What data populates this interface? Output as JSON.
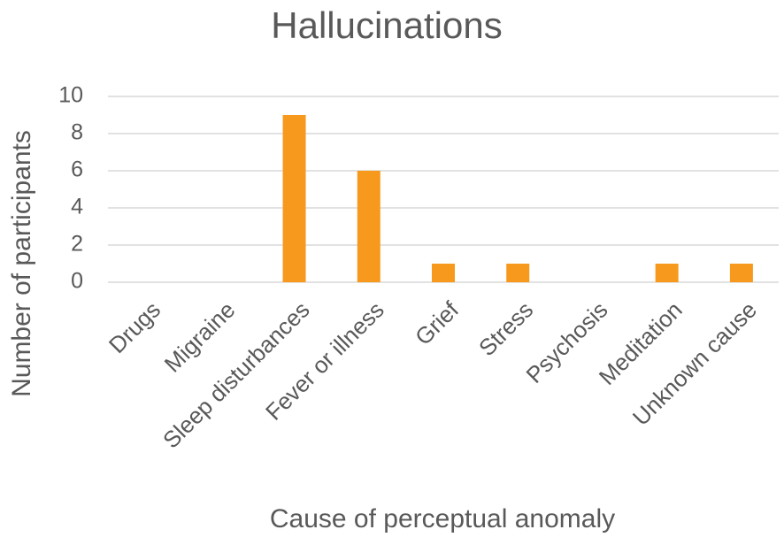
{
  "chart_data": {
    "type": "bar",
    "title": "Hallucinations",
    "x_label": "Cause of perceptual anomaly",
    "y_label": "Number of participants",
    "categories": [
      "Drugs",
      "Migraine",
      "Sleep disturbances",
      "Fever or illness",
      "Grief",
      "Stress",
      "Psychosis",
      "Meditation",
      "Unknown cause"
    ],
    "values": [
      0,
      0,
      9,
      6,
      1,
      1,
      0,
      1,
      1
    ],
    "color": "#f7991c",
    "ylim": [
      0,
      10
    ],
    "yticks": [
      0,
      2,
      4,
      6,
      8,
      10
    ],
    "grid": true
  }
}
